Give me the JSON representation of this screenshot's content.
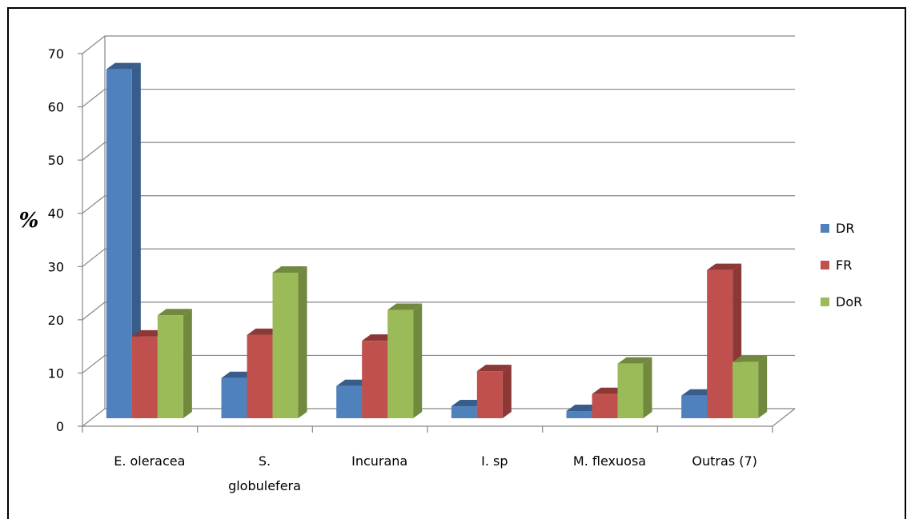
{
  "chart_data": {
    "type": "bar",
    "ylabel": "%",
    "ylim": [
      0,
      70
    ],
    "yticks": [
      "0",
      "10",
      "20",
      "30",
      "40",
      "50",
      "60",
      "70"
    ],
    "categories": [
      "E. oleracea",
      "S. globulefera",
      "Incurana",
      "I. sp",
      "M. flexuosa",
      "Outras (7)"
    ],
    "category_lines": [
      [
        "E. oleracea"
      ],
      [
        "S.",
        "globulefera"
      ],
      [
        "Incurana"
      ],
      [
        "I. sp"
      ],
      [
        "M. flexuosa"
      ],
      [
        "Outras (7)"
      ]
    ],
    "grid": true,
    "legend_position": "right",
    "series": [
      {
        "name": "DR",
        "color": "#4F81BD",
        "side": "#385D8A",
        "values": [
          67.5,
          9.5,
          8,
          4.2,
          3.3,
          6.2
        ]
      },
      {
        "name": "FR",
        "color": "#C0504D",
        "side": "#8C3836",
        "values": [
          17.3,
          17.6,
          16.5,
          10.8,
          6.5,
          29.8
        ]
      },
      {
        "name": "DoR",
        "color": "#9BBB59",
        "side": "#71893F",
        "values": [
          21.3,
          29.3,
          22.3,
          1.2,
          12.2,
          12.5
        ]
      }
    ]
  }
}
